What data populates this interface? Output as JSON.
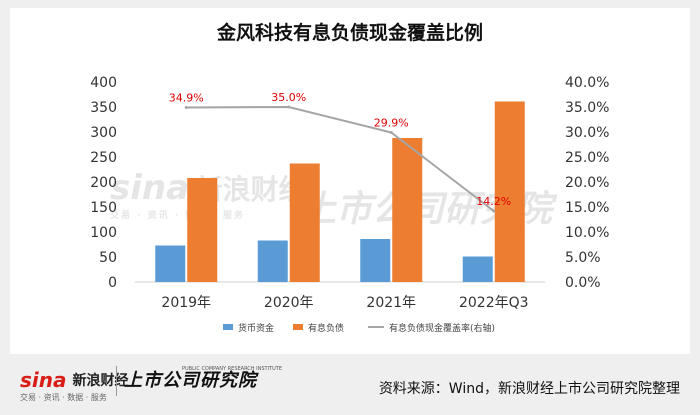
{
  "title": "金风科技有息负债现金覆盖比例",
  "footer": {
    "source": "资料来源：Wind，新浪财经上市公司研究院整理",
    "sina_brand": "sina",
    "sina_name": "新浪财经",
    "sina_sub": "交易 · 资讯 · 数据 · 服务",
    "institute_name": "上市公司研究院",
    "institute_en": "PUBLIC COMPANY RESEARCH INSTITUTE"
  },
  "watermark": {
    "sina_brand": "sina",
    "sina_name": "新浪财经",
    "sina_sub": "交易 · 资讯 · 数据 · 服务",
    "institute_name": "上市公司研究院"
  },
  "colors": {
    "cash": "#5b9bd5",
    "debt": "#ed7d31",
    "ratio": "#a5a5a5",
    "ratio_label": "#e00000"
  },
  "chart_data": {
    "type": "bar",
    "categories": [
      "2019年",
      "2020年",
      "2021年",
      "2022年Q3"
    ],
    "series": [
      {
        "name": "货币资金",
        "type": "bar",
        "axis": "left",
        "values": [
          73,
          83,
          86,
          51
        ]
      },
      {
        "name": "有息负债",
        "type": "bar",
        "axis": "left",
        "values": [
          208,
          237,
          288,
          361
        ]
      },
      {
        "name": "有息负债现金覆盖率(右轴)",
        "type": "line",
        "axis": "right",
        "values": [
          34.9,
          35.0,
          29.9,
          14.2
        ],
        "labels": [
          "34.9%",
          "35.0%",
          "29.9%",
          "14.2%"
        ]
      }
    ],
    "y_left": {
      "min": 0,
      "max": 400,
      "ticks": [
        "0",
        "50",
        "100",
        "150",
        "200",
        "250",
        "300",
        "350",
        "400"
      ]
    },
    "y_right": {
      "min": 0,
      "max": 40,
      "ticks": [
        "0.0%",
        "5.0%",
        "10.0%",
        "15.0%",
        "20.0%",
        "25.0%",
        "30.0%",
        "35.0%",
        "40.0%"
      ]
    },
    "grid": false,
    "legend": "bottom"
  }
}
